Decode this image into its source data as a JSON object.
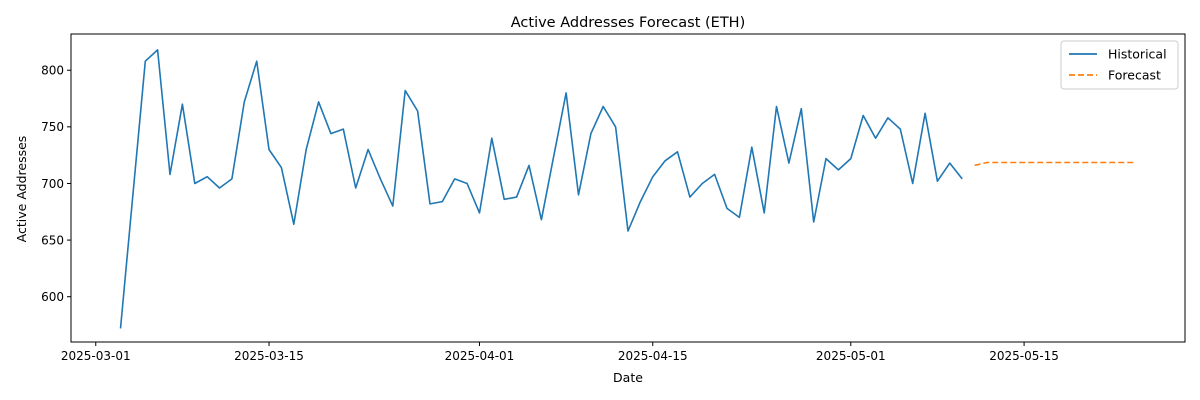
{
  "chart_data": {
    "type": "line",
    "title": "Active Addresses Forecast (ETH)",
    "xlabel": "Date",
    "ylabel": "Active Addresses",
    "x_ticks": [
      "2025-03-01",
      "2025-03-15",
      "2025-04-01",
      "2025-04-15",
      "2025-05-01",
      "2025-05-15"
    ],
    "y_ticks": [
      600,
      650,
      700,
      750,
      800
    ],
    "xlim": [
      "2025-02-27",
      "2025-05-28"
    ],
    "ylim": [
      560,
      832
    ],
    "grid": false,
    "legend_position": "top-right",
    "series": [
      {
        "name": "Historical",
        "color": "#1f77b4",
        "style": "solid",
        "x": [
          "2025-03-03",
          "2025-03-04",
          "2025-03-05",
          "2025-03-06",
          "2025-03-07",
          "2025-03-08",
          "2025-03-09",
          "2025-03-10",
          "2025-03-11",
          "2025-03-12",
          "2025-03-13",
          "2025-03-14",
          "2025-03-15",
          "2025-03-16",
          "2025-03-17",
          "2025-03-18",
          "2025-03-19",
          "2025-03-20",
          "2025-03-21",
          "2025-03-22",
          "2025-03-23",
          "2025-03-24",
          "2025-03-25",
          "2025-03-26",
          "2025-03-27",
          "2025-03-28",
          "2025-03-29",
          "2025-03-30",
          "2025-03-31",
          "2025-04-01",
          "2025-04-02",
          "2025-04-03",
          "2025-04-04",
          "2025-04-05",
          "2025-04-06",
          "2025-04-07",
          "2025-04-08",
          "2025-04-09",
          "2025-04-10",
          "2025-04-11",
          "2025-04-12",
          "2025-04-13",
          "2025-04-14",
          "2025-04-15",
          "2025-04-16",
          "2025-04-17",
          "2025-04-18",
          "2025-04-19",
          "2025-04-20",
          "2025-04-21",
          "2025-04-22",
          "2025-04-23",
          "2025-04-24",
          "2025-04-25",
          "2025-04-26",
          "2025-04-27",
          "2025-04-28",
          "2025-04-29",
          "2025-04-30",
          "2025-05-01",
          "2025-05-02",
          "2025-05-03",
          "2025-05-04",
          "2025-05-05",
          "2025-05-06",
          "2025-05-07",
          "2025-05-08",
          "2025-05-09",
          "2025-05-10"
        ],
        "values": [
          572,
          690,
          808,
          818,
          708,
          770,
          700,
          706,
          696,
          704,
          772,
          808,
          730,
          714,
          664,
          730,
          772,
          744,
          748,
          696,
          730,
          704,
          680,
          782,
          764,
          682,
          684,
          704,
          700,
          674,
          740,
          686,
          688,
          716,
          668,
          724,
          780,
          690,
          744,
          768,
          750,
          658,
          684,
          706,
          720,
          728,
          688,
          700,
          708,
          678,
          670,
          732,
          674,
          768,
          718,
          766,
          666,
          722,
          712,
          722,
          760,
          740,
          758,
          748,
          700,
          762,
          702,
          718,
          704
        ]
      },
      {
        "name": "Forecast",
        "color": "#ff7f0e",
        "style": "dashed",
        "x": [
          "2025-05-11",
          "2025-05-12",
          "2025-05-13",
          "2025-05-14",
          "2025-05-15",
          "2025-05-16",
          "2025-05-17",
          "2025-05-18",
          "2025-05-19",
          "2025-05-20",
          "2025-05-21",
          "2025-05-22",
          "2025-05-23",
          "2025-05-24"
        ],
        "values": [
          716,
          718.5,
          718.5,
          718.5,
          718.5,
          718.5,
          718.5,
          718.5,
          718.5,
          718.5,
          718.5,
          718.5,
          718.5,
          718.5
        ]
      }
    ]
  }
}
